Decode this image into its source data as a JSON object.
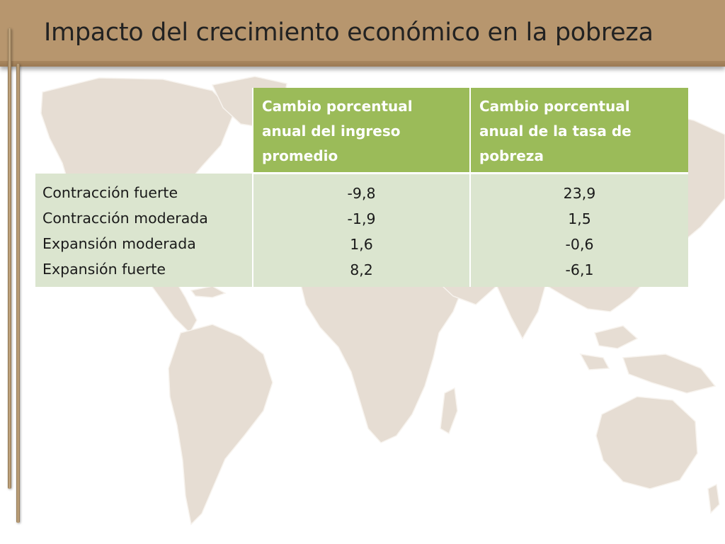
{
  "slide": {
    "title": "Impacto del crecimiento económico en la pobreza"
  },
  "table": {
    "headers": [
      "",
      "Cambio porcentual anual del ingreso promedio",
      "Cambio porcentual anual de la tasa de pobreza"
    ],
    "header_lines": [
      [],
      [
        "Cambio porcentual",
        "anual del ingreso",
        "promedio"
      ],
      [
        "Cambio porcentual",
        "anual de la tasa de",
        "pobreza"
      ]
    ],
    "rows": [
      {
        "label": "Contracción fuerte",
        "income_change": "-9,8",
        "poverty_change": "23,9"
      },
      {
        "label": "Contracción moderada",
        "income_change": "-1,9",
        "poverty_change": "1,5"
      },
      {
        "label": "Expansión moderada",
        "income_change": "1,6",
        "poverty_change": "-0,6"
      },
      {
        "label": "Expansión fuerte",
        "income_change": "8,2",
        "poverty_change": "-6,1"
      }
    ]
  },
  "colors": {
    "header_band": "#b7966e",
    "table_header": "#9bbb59",
    "table_body": "#dbe5cf",
    "map_land": "#e6ddd3"
  }
}
